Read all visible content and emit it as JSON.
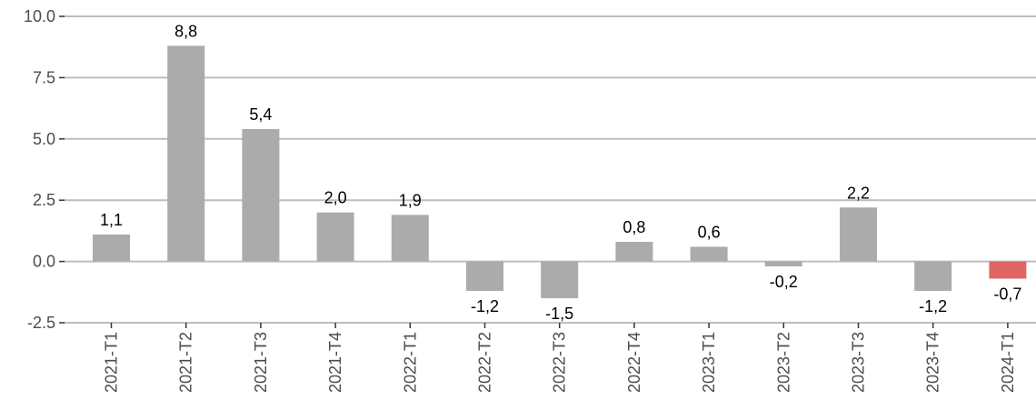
{
  "chart_data": {
    "type": "bar",
    "categories": [
      "2021-T1",
      "2021-T2",
      "2021-T3",
      "2021-T4",
      "2022-T1",
      "2022-T2",
      "2022-T3",
      "2022-T4",
      "2023-T1",
      "2023-T2",
      "2023-T3",
      "2023-T4",
      "2024-T1"
    ],
    "values": [
      1.1,
      8.8,
      5.4,
      2.0,
      1.9,
      -1.2,
      -1.5,
      0.8,
      0.6,
      -0.2,
      2.2,
      -1.2,
      -0.7
    ],
    "data_labels": [
      "1,1",
      "8,8",
      "5,4",
      "2,0",
      "1,9",
      "-1,2",
      "-1,5",
      "0,8",
      "0,6",
      "-0,2",
      "2,2",
      "-1,2",
      "-0,7"
    ],
    "ylim": [
      -2.5,
      10.0
    ],
    "y_ticks": [
      -2.5,
      0.0,
      2.5,
      5.0,
      7.5,
      10.0
    ],
    "y_tick_labels": [
      "-2.5",
      "0.0",
      "2.5",
      "5.0",
      "7.5",
      "10.0"
    ],
    "grid": true,
    "bar_color": "#ababab",
    "highlight_color": "#e06666",
    "highlight_index": 12,
    "title": "",
    "xlabel": "",
    "ylabel": ""
  }
}
